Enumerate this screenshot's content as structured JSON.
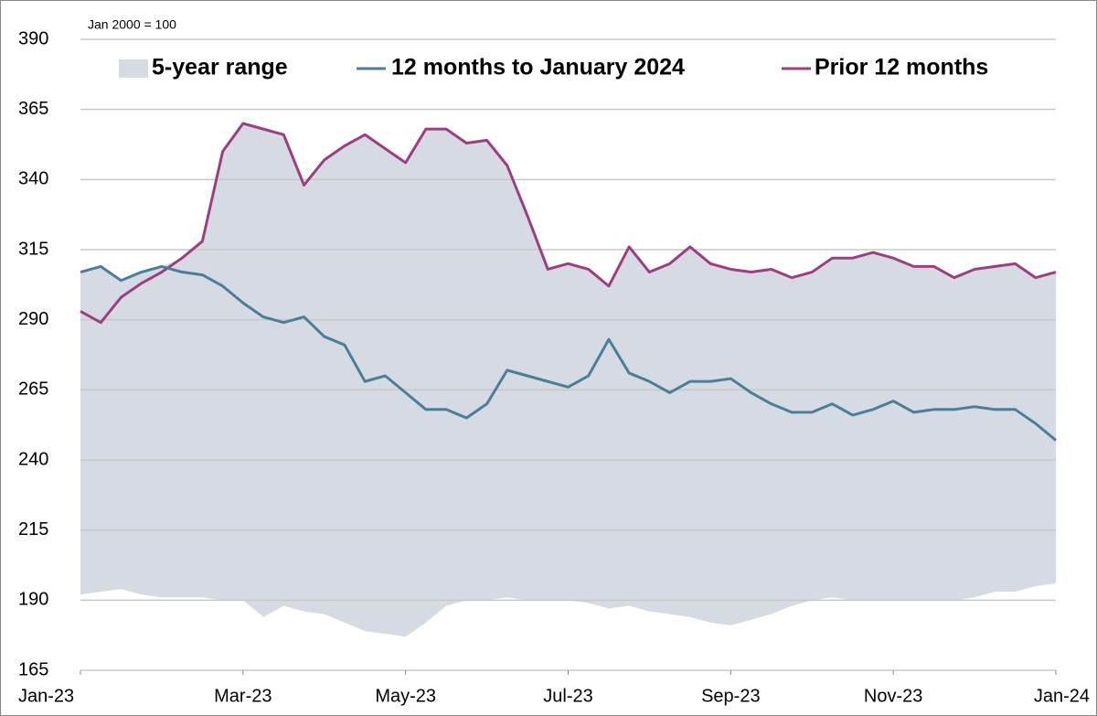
{
  "chart_data": {
    "type": "line",
    "annotation": "Jan 2000 = 100",
    "x": [
      0,
      0.25,
      0.5,
      0.75,
      1,
      1.25,
      1.5,
      1.75,
      2,
      2.25,
      2.5,
      2.75,
      3,
      3.25,
      3.5,
      3.75,
      4,
      4.25,
      4.5,
      4.75,
      5,
      5.25,
      5.5,
      5.75,
      6,
      6.25,
      6.5,
      6.75,
      7,
      7.25,
      7.5,
      7.75,
      8,
      8.25,
      8.5,
      8.75,
      9,
      9.25,
      9.5,
      9.75,
      10,
      10.25,
      10.5,
      10.75,
      11,
      11.25,
      11.5,
      11.75,
      12
    ],
    "xlim": [
      0,
      12
    ],
    "xticks": [
      {
        "value": 0,
        "label": "Jan-23"
      },
      {
        "value": 2,
        "label": "Mar-23"
      },
      {
        "value": 4,
        "label": "May-23"
      },
      {
        "value": 6,
        "label": "Jul-23"
      },
      {
        "value": 8,
        "label": "Sep-23"
      },
      {
        "value": 10,
        "label": "Nov-23"
      },
      {
        "value": 12,
        "label": "Jan-24"
      }
    ],
    "ylim": [
      165,
      390
    ],
    "yticks": [
      165,
      190,
      215,
      240,
      265,
      290,
      315,
      340,
      365,
      390
    ],
    "grid": true,
    "legend": "top",
    "range": {
      "name": "5-year range",
      "color": "#d5dae3",
      "upper": [
        307,
        309,
        304,
        307,
        309,
        312,
        318,
        350,
        360,
        358,
        356,
        338,
        347,
        352,
        356,
        351,
        346,
        358,
        358,
        353,
        354,
        345,
        327,
        308,
        310,
        308,
        302,
        316,
        307,
        310,
        316,
        310,
        308,
        307,
        308,
        305,
        307,
        312,
        312,
        314,
        312,
        309,
        309,
        305,
        308,
        309,
        310,
        305,
        307
      ],
      "lower": [
        192,
        193,
        194,
        192,
        191,
        191,
        191,
        190,
        190,
        184,
        188,
        186,
        185,
        182,
        179,
        178,
        177,
        182,
        188,
        190,
        190,
        191,
        190,
        190,
        190,
        189,
        187,
        188,
        186,
        185,
        184,
        182,
        181,
        183,
        185,
        188,
        190,
        191,
        190,
        190,
        190,
        190,
        190,
        190,
        191,
        193,
        193,
        195,
        196
      ]
    },
    "series": [
      {
        "name": "12 months to January 2024",
        "color": "#4a7f97",
        "values": [
          307,
          309,
          304,
          307,
          309,
          307,
          306,
          302,
          296,
          291,
          289,
          291,
          284,
          281,
          268,
          270,
          264,
          258,
          258,
          255,
          260,
          272,
          270,
          268,
          266,
          270,
          283,
          271,
          268,
          264,
          268,
          268,
          269,
          264,
          260,
          257,
          257,
          260,
          256,
          258,
          261,
          257,
          258,
          258,
          259,
          258,
          258,
          253,
          247
        ]
      },
      {
        "name": "Prior 12 months",
        "color": "#9c3f82",
        "values": [
          293,
          289,
          298,
          303,
          307,
          312,
          318,
          350,
          360,
          358,
          356,
          338,
          347,
          352,
          356,
          351,
          346,
          358,
          358,
          353,
          354,
          345,
          327,
          308,
          310,
          308,
          302,
          316,
          307,
          310,
          316,
          310,
          308,
          307,
          308,
          305,
          307,
          312,
          312,
          314,
          312,
          309,
          309,
          305,
          308,
          309,
          310,
          305,
          307
        ]
      }
    ]
  }
}
